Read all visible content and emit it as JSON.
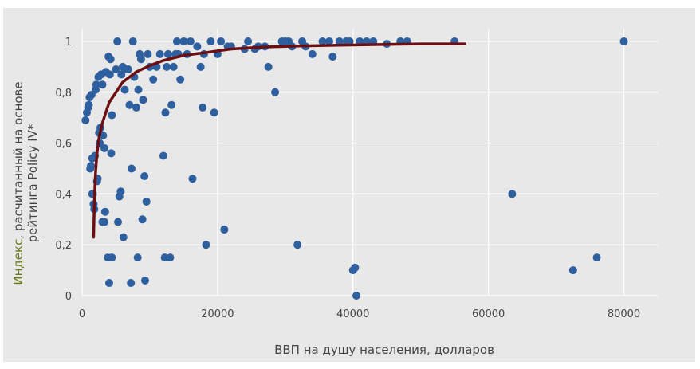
{
  "chart_data": {
    "type": "scatter",
    "title": "",
    "xlabel": "ВВП на душу населения, долларов",
    "ylabel_lines": [
      "Индекс, расчитанный на основе",
      "рейтинга Policy IV*"
    ],
    "xlim": [
      0,
      85000
    ],
    "ylim": [
      0,
      1.05
    ],
    "x_ticks": [
      0,
      20000,
      40000,
      60000,
      80000
    ],
    "y_ticks": [
      0,
      0.2,
      0.4,
      0.6,
      0.8,
      1
    ],
    "x_tick_labels": [
      "0",
      "20000",
      "40000",
      "60000",
      "80000"
    ],
    "y_tick_labels": [
      "0",
      "0,2",
      "0,4",
      "0,6",
      "0,8",
      "1"
    ],
    "grid": true,
    "legend": "none",
    "colors": {
      "background": "#e8e8e8",
      "plot_area": "#e8e8e8",
      "grid": "#ffffff",
      "points": "#2e5f9e",
      "trend": "#6b0f12",
      "ylabel_first_word": "#6e7a1e",
      "ylabel_rest": "#444444"
    },
    "series": [
      {
        "kind": "points",
        "points": [
          [
            500,
            0.69
          ],
          [
            700,
            0.72
          ],
          [
            900,
            0.74
          ],
          [
            1000,
            0.75
          ],
          [
            1100,
            0.78
          ],
          [
            1200,
            0.5
          ],
          [
            1300,
            0.51
          ],
          [
            1400,
            0.79
          ],
          [
            1500,
            0.54
          ],
          [
            1500,
            0.4
          ],
          [
            1600,
            0.4
          ],
          [
            1700,
            0.36
          ],
          [
            1800,
            0.34
          ],
          [
            1900,
            0.55
          ],
          [
            2000,
            0.81
          ],
          [
            2100,
            0.83
          ],
          [
            2200,
            0.45
          ],
          [
            2300,
            0.46
          ],
          [
            2400,
            0.86
          ],
          [
            2500,
            0.64
          ],
          [
            2600,
            0.6
          ],
          [
            2700,
            0.66
          ],
          [
            2800,
            0.87
          ],
          [
            3000,
            0.29
          ],
          [
            3000,
            0.83
          ],
          [
            3100,
            0.63
          ],
          [
            3300,
            0.58
          ],
          [
            3300,
            0.29
          ],
          [
            3400,
            0.33
          ],
          [
            3500,
            0.88
          ],
          [
            3800,
            0.15
          ],
          [
            3900,
            0.94
          ],
          [
            4000,
            0.05
          ],
          [
            4100,
            0.87
          ],
          [
            4200,
            0.93
          ],
          [
            4300,
            0.56
          ],
          [
            4400,
            0.15
          ],
          [
            4400,
            0.71
          ],
          [
            5000,
            0.89
          ],
          [
            5200,
            1.0
          ],
          [
            5300,
            0.29
          ],
          [
            5500,
            0.39
          ],
          [
            5700,
            0.41
          ],
          [
            5800,
            0.87
          ],
          [
            6000,
            0.9
          ],
          [
            6100,
            0.23
          ],
          [
            6300,
            0.81
          ],
          [
            6500,
            0.89
          ],
          [
            6800,
            0.89
          ],
          [
            7000,
            0.75
          ],
          [
            7200,
            0.05
          ],
          [
            7300,
            0.5
          ],
          [
            7500,
            1.0
          ],
          [
            7700,
            0.86
          ],
          [
            8000,
            0.74
          ],
          [
            8200,
            0.15
          ],
          [
            8300,
            0.81
          ],
          [
            8500,
            0.95
          ],
          [
            8700,
            0.93
          ],
          [
            8900,
            0.3
          ],
          [
            9000,
            0.77
          ],
          [
            9200,
            0.47
          ],
          [
            9300,
            0.06
          ],
          [
            9500,
            0.37
          ],
          [
            9700,
            0.95
          ],
          [
            10000,
            0.9
          ],
          [
            10500,
            0.85
          ],
          [
            11000,
            0.9
          ],
          [
            11500,
            0.95
          ],
          [
            12000,
            0.55
          ],
          [
            12200,
            0.15
          ],
          [
            12300,
            0.72
          ],
          [
            12500,
            0.9
          ],
          [
            12700,
            0.95
          ],
          [
            13000,
            0.15
          ],
          [
            13200,
            0.75
          ],
          [
            13500,
            0.9
          ],
          [
            13800,
            0.95
          ],
          [
            14000,
            1.0
          ],
          [
            14200,
            0.95
          ],
          [
            14500,
            0.85
          ],
          [
            15000,
            1.0
          ],
          [
            15500,
            0.95
          ],
          [
            16000,
            1.0
          ],
          [
            16300,
            0.46
          ],
          [
            17000,
            0.98
          ],
          [
            17500,
            0.9
          ],
          [
            17800,
            0.74
          ],
          [
            18000,
            0.95
          ],
          [
            18300,
            0.2
          ],
          [
            19000,
            1.0
          ],
          [
            19500,
            0.72
          ],
          [
            20000,
            0.95
          ],
          [
            20500,
            1.0
          ],
          [
            21000,
            0.26
          ],
          [
            21500,
            0.98
          ],
          [
            22000,
            0.98
          ],
          [
            24000,
            0.97
          ],
          [
            24500,
            1.0
          ],
          [
            25500,
            0.97
          ],
          [
            26000,
            0.98
          ],
          [
            27000,
            0.98
          ],
          [
            27500,
            0.9
          ],
          [
            28500,
            0.8
          ],
          [
            29500,
            1.0
          ],
          [
            30000,
            1.0
          ],
          [
            30500,
            1.0
          ],
          [
            31000,
            0.98
          ],
          [
            31800,
            0.2
          ],
          [
            32500,
            1.0
          ],
          [
            33000,
            0.98
          ],
          [
            34000,
            0.95
          ],
          [
            35500,
            1.0
          ],
          [
            36500,
            1.0
          ],
          [
            37000,
            0.94
          ],
          [
            38000,
            1.0
          ],
          [
            39000,
            1.0
          ],
          [
            39500,
            1.0
          ],
          [
            40000,
            0.1
          ],
          [
            40300,
            0.11
          ],
          [
            40500,
            0.0
          ],
          [
            41000,
            1.0
          ],
          [
            42000,
            1.0
          ],
          [
            43000,
            1.0
          ],
          [
            45000,
            0.99
          ],
          [
            47000,
            1.0
          ],
          [
            48000,
            1.0
          ],
          [
            55000,
            1.0
          ],
          [
            63500,
            0.4
          ],
          [
            72500,
            0.1
          ],
          [
            76000,
            0.15
          ],
          [
            80000,
            1.0
          ]
        ]
      },
      {
        "kind": "trend_line",
        "points": [
          [
            1700,
            0.23
          ],
          [
            1800,
            0.35
          ],
          [
            1900,
            0.43
          ],
          [
            2000,
            0.49
          ],
          [
            2200,
            0.56
          ],
          [
            2500,
            0.62
          ],
          [
            3000,
            0.68
          ],
          [
            3500,
            0.72
          ],
          [
            4000,
            0.76
          ],
          [
            5000,
            0.8
          ],
          [
            6000,
            0.84
          ],
          [
            7000,
            0.86
          ],
          [
            8000,
            0.88
          ],
          [
            10000,
            0.905
          ],
          [
            12000,
            0.925
          ],
          [
            15000,
            0.945
          ],
          [
            18000,
            0.955
          ],
          [
            22000,
            0.97
          ],
          [
            27000,
            0.978
          ],
          [
            32000,
            0.982
          ],
          [
            38000,
            0.985
          ],
          [
            45000,
            0.988
          ],
          [
            50000,
            0.99
          ],
          [
            56500,
            0.99
          ]
        ]
      }
    ]
  }
}
